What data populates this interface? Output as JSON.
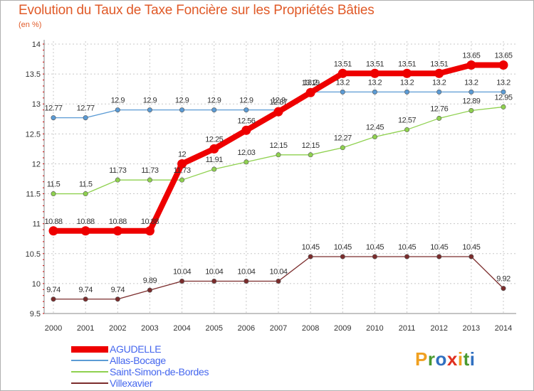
{
  "header": {
    "title": "Evolution du Taux de Taxe Foncière sur les Propriétés Bâties",
    "unit": "(en %)"
  },
  "logo": {
    "letters": [
      "P",
      "r",
      "o",
      "x",
      "i",
      "t",
      "i"
    ],
    "colors": [
      "#f0a020",
      "#4a9a30",
      "#3070c0",
      "#e03020",
      "#f0a020",
      "#4a9a30",
      "#3070c0"
    ]
  },
  "chart_data": {
    "type": "line",
    "title": "Evolution du Taux de Taxe Foncière sur les Propriétés Bâties",
    "ylabel": "(en %)",
    "xlabel": "",
    "categories": [
      "2000",
      "2001",
      "2002",
      "2003",
      "2004",
      "2005",
      "2006",
      "2007",
      "2008",
      "2009",
      "2010",
      "2011",
      "2012",
      "2013",
      "2014"
    ],
    "ylim": [
      9.5,
      14
    ],
    "yticks": [
      "9.5",
      "10",
      "10.5",
      "11",
      "11.5",
      "12",
      "12.5",
      "13",
      "13.5",
      "14"
    ],
    "legend_position": "bottom-left",
    "series": [
      {
        "name": "AGUDELLE",
        "color": "#ee0000",
        "width": "thick",
        "values": [
          10.88,
          10.88,
          10.88,
          10.88,
          12,
          12.25,
          12.56,
          12.87,
          13.19,
          13.51,
          13.51,
          13.51,
          13.51,
          13.65,
          13.65
        ],
        "labels": [
          "10.88",
          "10.88",
          "10.88",
          "10.88",
          "12",
          "12.25",
          "12.56",
          "12.87",
          "13.19",
          "13.51",
          "13.51",
          "13.51",
          "13.51",
          "13.65",
          "13.65"
        ]
      },
      {
        "name": "Allas-Bocage",
        "color": "#5b9bd5",
        "width": "thin",
        "values": [
          12.77,
          12.77,
          12.9,
          12.9,
          12.9,
          12.9,
          12.9,
          12.9,
          13.2,
          13.2,
          13.2,
          13.2,
          13.2,
          13.2,
          13.2
        ],
        "labels": [
          "12.77",
          "12.77",
          "12.9",
          "12.9",
          "12.9",
          "12.9",
          "12.9",
          "12.9",
          "13.2",
          "13.2",
          "13.2",
          "13.2",
          "13.2",
          "13.2",
          "13.2"
        ]
      },
      {
        "name": "Saint-Simon-de-Bordes",
        "color": "#8fd14f",
        "width": "thin",
        "values": [
          11.5,
          11.5,
          11.73,
          11.73,
          11.73,
          11.91,
          12.03,
          12.15,
          12.15,
          12.27,
          12.45,
          12.57,
          12.76,
          12.89,
          12.95
        ],
        "labels": [
          "11.5",
          "11.5",
          "11.73",
          "11.73",
          "11.73",
          "11.91",
          "12.03",
          "12.15",
          "12.15",
          "12.27",
          "12.45",
          "12.57",
          "12.76",
          "12.89",
          "12.95"
        ]
      },
      {
        "name": "Villexavier",
        "color": "#7b2c2c",
        "width": "thin",
        "values": [
          9.74,
          9.74,
          9.74,
          9.89,
          10.04,
          10.04,
          10.04,
          10.04,
          10.45,
          10.45,
          10.45,
          10.45,
          10.45,
          10.45,
          9.92
        ],
        "labels": [
          "9.74",
          "9.74",
          "9.74",
          "9.89",
          "10.04",
          "10.04",
          "10.04",
          "10.04",
          "10.45",
          "10.45",
          "10.45",
          "10.45",
          "10.45",
          "10.45",
          "9.92"
        ]
      }
    ]
  }
}
